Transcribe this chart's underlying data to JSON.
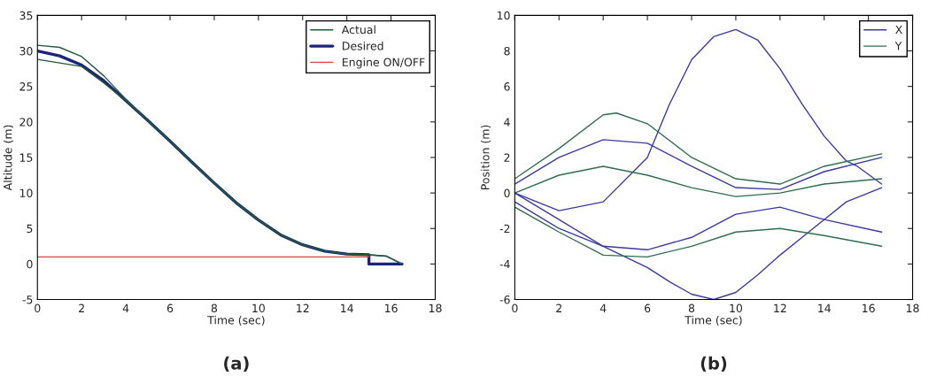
{
  "chart_data": [
    {
      "type": "line",
      "xlabel": "Time (sec)",
      "ylabel": "Altitude (m)",
      "xlim": [
        0,
        18
      ],
      "ylim": [
        -5,
        35
      ],
      "xticks": [
        0,
        2,
        4,
        6,
        8,
        10,
        12,
        14,
        16,
        18
      ],
      "yticks": [
        -5,
        0,
        5,
        10,
        15,
        20,
        25,
        30,
        35
      ],
      "grid": false,
      "legend": "top right",
      "annotations": [
        "(a)"
      ],
      "series": [
        {
          "name": "Actual",
          "color": "#1f5a3a",
          "x": [
            0,
            1,
            2,
            3,
            4,
            5,
            6,
            7,
            8,
            9,
            10,
            11,
            12,
            13,
            14,
            15,
            15.8,
            16.5
          ],
          "values": [
            30.8,
            30.5,
            29.2,
            26.5,
            23.2,
            20.2,
            17.3,
            14.3,
            11.4,
            8.6,
            6.2,
            4.1,
            2.7,
            1.8,
            1.4,
            1.3,
            1.1,
            0
          ]
        },
        {
          "name": "Desired",
          "color": "#1a237e",
          "x": [
            0,
            1,
            2,
            3,
            4,
            5,
            6,
            7,
            8,
            9,
            10,
            11,
            12,
            13,
            14,
            15,
            15,
            16.5
          ],
          "values": [
            30,
            29.3,
            28,
            25.8,
            23,
            20.2,
            17.3,
            14.3,
            11.4,
            8.6,
            6.2,
            4.1,
            2.7,
            1.8,
            1.4,
            1.3,
            0,
            0
          ]
        },
        {
          "color": "#1f5a3a",
          "x": [
            0,
            1,
            2,
            3,
            4,
            5,
            6,
            7,
            8,
            9,
            10,
            11,
            12,
            13,
            14,
            15,
            15.8,
            16.5
          ],
          "values": [
            28.8,
            28.3,
            27.8,
            25.5,
            23,
            20.2,
            17.3,
            14.3,
            11.4,
            8.6,
            6.2,
            4.1,
            2.7,
            1.8,
            1.4,
            1.3,
            1.1,
            0
          ]
        },
        {
          "name": "Engine ON/OFF",
          "color": "#e04040",
          "x": [
            0,
            15
          ],
          "values": [
            1,
            1
          ]
        }
      ]
    },
    {
      "type": "line",
      "xlabel": "Time (sec)",
      "ylabel": "Position (m)",
      "xlim": [
        0,
        18
      ],
      "ylim": [
        -6,
        10
      ],
      "xticks": [
        0,
        2,
        4,
        6,
        8,
        10,
        12,
        14,
        16,
        18
      ],
      "yticks": [
        -6,
        -4,
        -2,
        0,
        2,
        4,
        6,
        8,
        10
      ],
      "grid": false,
      "legend": "top right",
      "annotations": [
        "(b)"
      ],
      "series": [
        {
          "name": "X",
          "color": "#3a3aa0",
          "x": [
            0,
            2,
            4,
            6,
            7,
            8,
            9,
            10,
            11,
            12,
            13,
            14,
            15,
            15.5,
            16.6
          ],
          "values": [
            0,
            -1,
            -0.5,
            2,
            5,
            7.5,
            8.8,
            9.2,
            8.6,
            7,
            5,
            3.2,
            1.8,
            1.5,
            0.5
          ]
        },
        {
          "name": "Y",
          "color": "#2e6e4e",
          "x": [
            0,
            2,
            4,
            4.6,
            6,
            8,
            10,
            12,
            14,
            16.6
          ],
          "values": [
            0.8,
            2.5,
            4.4,
            4.5,
            3.9,
            2,
            0.8,
            0.5,
            1.5,
            2.2
          ]
        },
        {
          "color": "#3a3aa0",
          "x": [
            0,
            2,
            4,
            6,
            7,
            8,
            9,
            10,
            11,
            12,
            13,
            14,
            15,
            16.6
          ],
          "values": [
            0,
            -1.5,
            -3,
            -4.2,
            -5,
            -5.7,
            -6,
            -5.6,
            -4.6,
            -3.5,
            -2.5,
            -1.5,
            -0.5,
            0.3
          ]
        },
        {
          "color": "#2e6e4e",
          "x": [
            0,
            2,
            4,
            6,
            8,
            10,
            12,
            14,
            16.6
          ],
          "values": [
            -0.8,
            -2.2,
            -3.5,
            -3.6,
            -3,
            -2.2,
            -2,
            -2.4,
            -3
          ]
        },
        {
          "color": "#3a3aa0",
          "x": [
            0,
            2,
            4,
            6,
            8,
            10,
            12,
            14,
            16.6
          ],
          "values": [
            0.5,
            2,
            3,
            2.8,
            1.5,
            0.3,
            0.2,
            1.2,
            2
          ]
        },
        {
          "color": "#3a3aa0",
          "x": [
            0,
            2,
            4,
            6,
            8,
            10,
            12,
            14,
            16.6
          ],
          "values": [
            -0.5,
            -2,
            -3,
            -3.2,
            -2.5,
            -1.2,
            -0.8,
            -1.5,
            -2.2
          ]
        },
        {
          "color": "#2e6e4e",
          "x": [
            0,
            2,
            4,
            6,
            8,
            10,
            12,
            14,
            16.6
          ],
          "values": [
            0,
            1,
            1.5,
            1,
            0.3,
            -0.2,
            0,
            0.5,
            0.8
          ]
        }
      ]
    }
  ]
}
